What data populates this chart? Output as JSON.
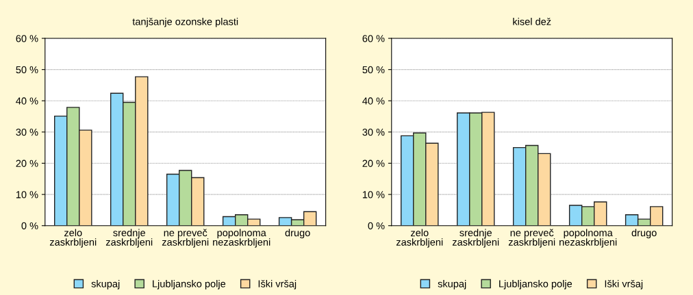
{
  "chart_data": [
    {
      "type": "bar",
      "title": "tanjšanje ozonske plasti",
      "categories": [
        "zelo\nzaskrbljeni",
        "srednje\nzaskrbljeni",
        "ne preveč\nzaskrbljeni",
        "popolnoma\nnezaskrbljeni",
        "drugo"
      ],
      "series": [
        {
          "name": "skupaj",
          "color": "#8dd8f8",
          "values": [
            35.1,
            42.4,
            16.5,
            2.9,
            2.6
          ]
        },
        {
          "name": "Ljubljansko polje",
          "color": "#b5db9b",
          "values": [
            37.9,
            39.5,
            17.7,
            3.5,
            1.9
          ]
        },
        {
          "name": "Iški vršaj",
          "color": "#fdd9a0",
          "values": [
            30.6,
            47.7,
            15.4,
            2.1,
            4.5
          ]
        }
      ],
      "ylim": [
        0,
        60
      ],
      "yticks": [
        {
          "value": 0,
          "label": "0 %"
        },
        {
          "value": 10,
          "label": "10 %"
        },
        {
          "value": 20,
          "label": "20 %"
        },
        {
          "value": 30,
          "label": "30 %"
        },
        {
          "value": 40,
          "label": "40 %"
        },
        {
          "value": 50,
          "label": "50 %"
        },
        {
          "value": 60,
          "label": "60 %"
        }
      ],
      "grid": "y",
      "legend": "bottom"
    },
    {
      "type": "bar",
      "title": "kisel dež",
      "categories": [
        "zelo\nzaskrbljeni",
        "srednje\nzaskrbljeni",
        "ne preveč\nzaskrbljeni",
        "popolnoma\nnezaskrbljeni",
        "drugo"
      ],
      "series": [
        {
          "name": "skupaj",
          "color": "#8dd8f8",
          "values": [
            28.8,
            36.1,
            25.0,
            6.5,
            3.5
          ]
        },
        {
          "name": "Ljubljansko polje",
          "color": "#b5db9b",
          "values": [
            29.7,
            36.1,
            25.7,
            6.1,
            2.1
          ]
        },
        {
          "name": "Iški vršaj",
          "color": "#fdd9a0",
          "values": [
            26.4,
            36.3,
            23.1,
            7.6,
            6.1
          ]
        }
      ],
      "ylim": [
        0,
        60
      ],
      "yticks": [
        {
          "value": 0,
          "label": "0 %"
        },
        {
          "value": 10,
          "label": "10 %"
        },
        {
          "value": 20,
          "label": "20 %"
        },
        {
          "value": 30,
          "label": "30 %"
        },
        {
          "value": 40,
          "label": "40 %"
        },
        {
          "value": 50,
          "label": "50 %"
        },
        {
          "value": 60,
          "label": "60 %"
        }
      ],
      "grid": "y",
      "legend": "bottom"
    }
  ]
}
